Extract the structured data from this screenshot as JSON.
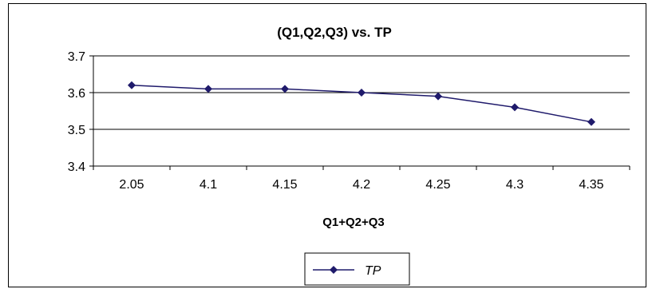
{
  "chart_data": {
    "type": "line",
    "title": "(Q1,Q2,Q3) vs. TP",
    "xlabel": "Q1+Q2+Q3",
    "ylabel": "",
    "categories": [
      "2.05",
      "4.1",
      "4.15",
      "4.2",
      "4.25",
      "4.3",
      "4.35"
    ],
    "series": [
      {
        "name": "TP",
        "values": [
          3.62,
          3.61,
          3.61,
          3.6,
          3.59,
          3.56,
          3.52
        ]
      }
    ],
    "ylim": [
      3.4,
      3.7
    ],
    "yticks": [
      "3.4",
      "3.5",
      "3.6",
      "3.7"
    ],
    "grid": true,
    "legend_position": "bottom",
    "colors": {
      "series": "#1F1A6B",
      "grid": "#000000"
    }
  }
}
